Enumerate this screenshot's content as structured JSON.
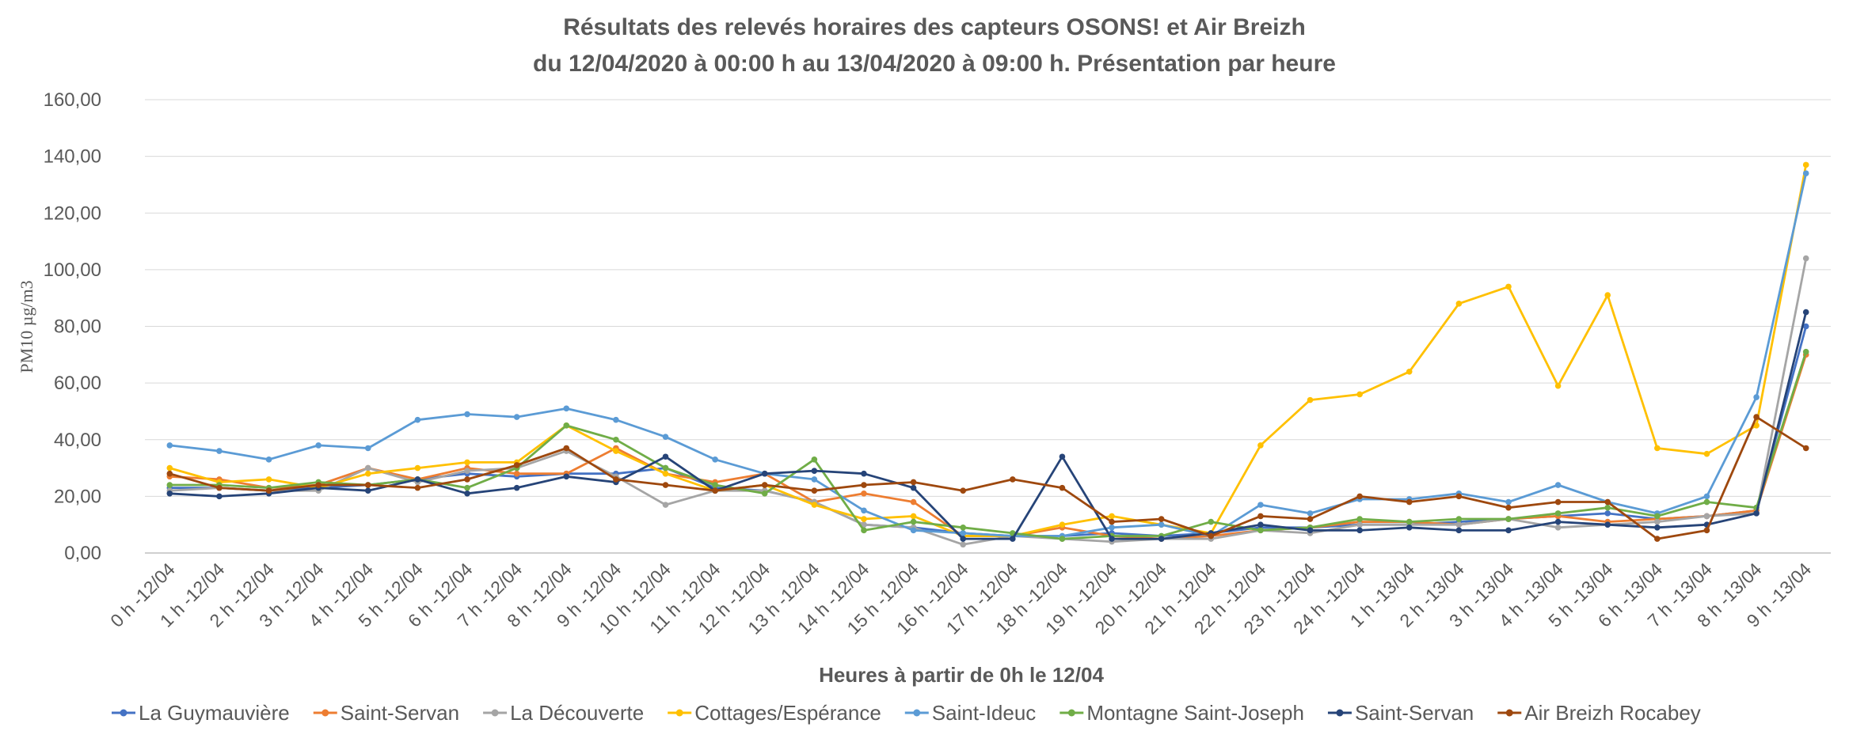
{
  "chart_data": {
    "type": "line",
    "title": "Résultats des relevés horaires des capteurs OSONS! et Air Breizh",
    "subtitle": "du 12/04/2020 à 00:00 h au 13/04/2020  à 09:00 h. Présentation par heure",
    "xlabel": "Heures à partir de 0h le 12/04",
    "ylabel": "PM10 µg/m3",
    "ylim": [
      0,
      160
    ],
    "yticks": [
      "0,00",
      "20,00",
      "40,00",
      "60,00",
      "80,00",
      "100,00",
      "120,00",
      "140,00",
      "160,00"
    ],
    "grid": true,
    "legend_position": "bottom",
    "categories": [
      "0 h -12/04",
      "1 h -12/04",
      "2 h -12/04",
      "3 h -12/04",
      "4 h -12/04",
      "5 h -12/04",
      "6 h -12/04",
      "7 h -12/04",
      "8 h -12/04",
      "9 h -12/04",
      "10 h -12/04",
      "11 h -12/04",
      "12 h -12/04",
      "13 h -12/04",
      "14 h -12/04",
      "15 h -12/04",
      "16 h -12/04",
      "17 h -12/04",
      "18 h -12/04",
      "19 h -12/04",
      "20 h -12/04",
      "21 h -12/04",
      "22 h -12/04",
      "23 h -12/04",
      "24 h -12/04",
      "1 h -13/04",
      "2 h -13/04",
      "3 h -13/04",
      "4 h -13/04",
      "5 h -13/04",
      "6 h -13/04",
      "7 h -13/04",
      "8 h -13/04",
      "9 h -13/04"
    ],
    "series": [
      {
        "name": "La Guymauvière",
        "color": "#4472C4",
        "values": [
          23,
          23,
          22,
          23,
          24,
          26,
          28,
          27,
          28,
          28,
          30,
          23,
          22,
          18,
          10,
          9,
          7,
          6,
          6,
          7,
          6,
          7,
          9,
          9,
          10,
          10,
          11,
          12,
          13,
          14,
          12,
          13,
          15,
          80
        ]
      },
      {
        "name": "Saint-Servan",
        "color": "#ED7D31",
        "values": [
          27,
          26,
          23,
          24,
          30,
          26,
          30,
          28,
          28,
          37,
          28,
          25,
          28,
          18,
          21,
          18,
          6,
          6,
          9,
          6,
          5,
          6,
          8,
          9,
          11,
          11,
          10,
          12,
          13,
          11,
          12,
          13,
          15,
          70
        ]
      },
      {
        "name": "La Découverte",
        "color": "#A5A5A5",
        "values": [
          22,
          23,
          22,
          22,
          30,
          25,
          29,
          30,
          36,
          27,
          17,
          22,
          22,
          18,
          10,
          9,
          3,
          6,
          5,
          4,
          5,
          5,
          8,
          7,
          10,
          10,
          10,
          12,
          9,
          10,
          11,
          13,
          14,
          104
        ]
      },
      {
        "name": "Cottages/Espérance",
        "color": "#FFC000",
        "values": [
          30,
          25,
          26,
          23,
          28,
          30,
          32,
          32,
          45,
          36,
          28,
          22,
          24,
          17,
          12,
          13,
          6,
          6,
          10,
          13,
          10,
          7,
          38,
          54,
          56,
          64,
          88,
          94,
          59,
          91,
          37,
          35,
          45,
          137
        ]
      },
      {
        "name": "Saint-Ideuc",
        "color": "#5B9BD5",
        "values": [
          38,
          36,
          33,
          38,
          37,
          47,
          49,
          48,
          51,
          47,
          41,
          33,
          28,
          26,
          15,
          8,
          7,
          6,
          6,
          9,
          10,
          6,
          17,
          14,
          19,
          19,
          21,
          18,
          24,
          18,
          14,
          20,
          55,
          134
        ]
      },
      {
        "name": "Montagne Saint-Joseph",
        "color": "#70AD47",
        "values": [
          24,
          24,
          23,
          25,
          24,
          26,
          23,
          30,
          45,
          40,
          30,
          24,
          21,
          33,
          8,
          11,
          9,
          7,
          5,
          6,
          6,
          11,
          8,
          9,
          12,
          11,
          12,
          12,
          14,
          16,
          13,
          18,
          16,
          71
        ]
      },
      {
        "name": "Saint-Servan",
        "color": "#264478",
        "values": [
          21,
          20,
          21,
          23,
          22,
          26,
          21,
          23,
          27,
          25,
          34,
          22,
          28,
          29,
          28,
          23,
          5,
          5,
          34,
          5,
          5,
          7,
          10,
          8,
          8,
          9,
          8,
          8,
          11,
          10,
          9,
          10,
          14,
          85
        ]
      },
      {
        "name": "Air Breizh Rocabey",
        "color": "#9E480E",
        "values": [
          28,
          23,
          22,
          24,
          24,
          23,
          26,
          31,
          37,
          26,
          24,
          22,
          24,
          22,
          24,
          25,
          22,
          26,
          23,
          11,
          12,
          6,
          13,
          12,
          20,
          18,
          20,
          16,
          18,
          18,
          5,
          8,
          48,
          37
        ]
      }
    ]
  }
}
